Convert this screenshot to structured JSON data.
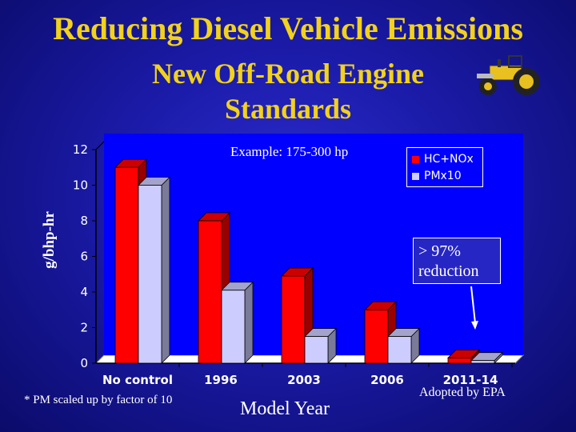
{
  "slide": {
    "title": "Reducing Diesel Vehicle Emissions",
    "subtitle": "New Off-Road Engine Standards",
    "footnote": "* PM scaled up by factor of 10",
    "adopted_note": "Adopted by EPA",
    "example_label": "Example: 175-300 hp",
    "callout": "> 97% reduction",
    "tractor_icon": "tractor-icon"
  },
  "chart_data": {
    "type": "bar",
    "categories": [
      "No control",
      "1996",
      "2003",
      "2006",
      "2011-14"
    ],
    "series": [
      {
        "name": "HC+NOx",
        "values": [
          11,
          8,
          4.9,
          3,
          0.3
        ],
        "color": "#ff0000"
      },
      {
        "name": "PMx10",
        "values": [
          10,
          4.1,
          1.5,
          1.5,
          0.15
        ],
        "color": "#ccccff"
      }
    ],
    "xlabel": "Model Year",
    "ylabel": "g/bhp-hr",
    "ylim": [
      0,
      12
    ],
    "yticks": [
      0,
      2,
      4,
      6,
      8,
      10,
      12
    ],
    "grid": false,
    "legend": "top-right",
    "colors": {
      "title": "#f2d21a",
      "plot_bg": "#0000ff",
      "text": "#ffffff"
    }
  }
}
